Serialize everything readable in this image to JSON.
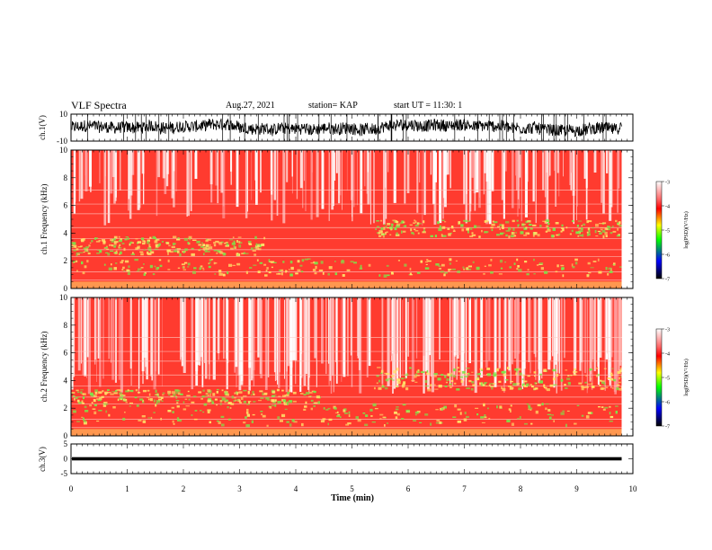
{
  "header": {
    "title": "VLF Spectra",
    "date": "Aug.27, 2021",
    "station": "station= KAP",
    "start": "start UT = 11:30: 1"
  },
  "colorbar": {
    "label": "log(PSD)(V²/Hz)",
    "ticks": [
      "-3",
      "-4",
      "-5",
      "-6",
      "-7"
    ],
    "stops": [
      "#ffffff",
      "#ff0000",
      "#ffff00",
      "#00ff00",
      "#0000ff",
      "#000000"
    ]
  },
  "chart_data": [
    {
      "type": "line",
      "panel": "ch1-waveform",
      "ylabel": "ch.1(V)",
      "ylim": [
        -10,
        10
      ],
      "y_ticks": [
        "10",
        "-10"
      ],
      "x_range_min": [
        0,
        9.8
      ],
      "approx_level_v": [
        2,
        -4
      ],
      "color": "#000000"
    },
    {
      "type": "heatmap",
      "panel": "ch1-spectrogram",
      "ylabel": "ch.1 Frequency (kHz)",
      "ylim": [
        0,
        10
      ],
      "y_ticks": [
        "0",
        "2",
        "4",
        "6",
        "8",
        "10"
      ],
      "x_range_min": [
        0,
        9.8
      ],
      "zlim": [
        -7,
        -3
      ],
      "colors": [
        "#ffffff",
        "#ff3b2f",
        "#ffe36a",
        "#7de64a"
      ]
    },
    {
      "type": "heatmap",
      "panel": "ch2-spectrogram",
      "ylabel": "ch.2 Frequency (kHz)",
      "ylim": [
        0,
        10
      ],
      "y_ticks": [
        "0",
        "2",
        "4",
        "6",
        "8",
        "10"
      ],
      "x_range_min": [
        0,
        9.8
      ],
      "zlim": [
        -7,
        -3
      ],
      "colors": [
        "#ffffff",
        "#ff3b2f",
        "#ffe36a",
        "#7de64a"
      ]
    },
    {
      "type": "line",
      "panel": "ch3-waveform",
      "ylabel": "ch.3(V)",
      "ylim": [
        -5,
        5
      ],
      "y_ticks": [
        "5",
        "0",
        "-5"
      ],
      "x_range_min": [
        0,
        9.8
      ],
      "approx_level_v": 0,
      "color": "#000000"
    }
  ],
  "x_axis": {
    "label": "Time (min)",
    "ticks": [
      "0",
      "1",
      "2",
      "3",
      "4",
      "5",
      "6",
      "7",
      "8",
      "9",
      "10"
    ],
    "xlim": [
      0,
      10
    ]
  }
}
